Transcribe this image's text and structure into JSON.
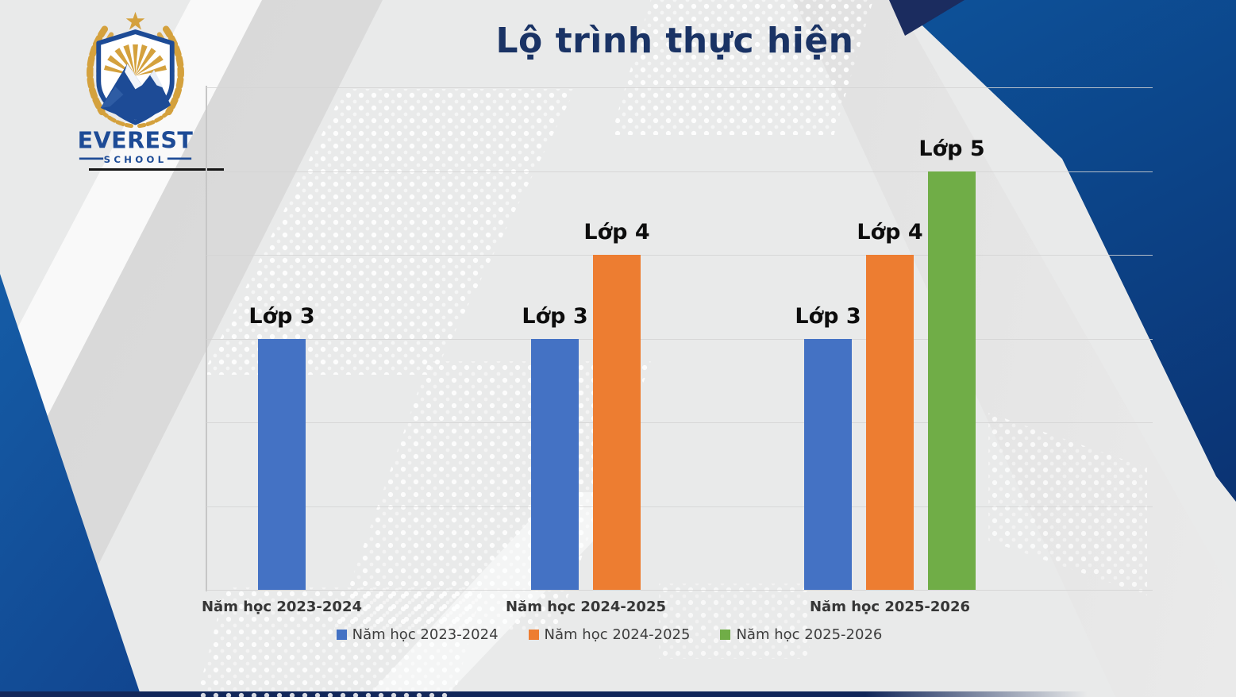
{
  "slide": {
    "title": "Lộ trình thực hiện"
  },
  "logo": {
    "name": "EVEREST",
    "sub": "SCHOOL"
  },
  "colors": {
    "title_navy": "#1a3365",
    "brand_blue": "#1d4b96",
    "brand_gold": "#d4a13d",
    "band_blue": "#1168b1",
    "band_navy": "#0c2a66"
  },
  "chart_data": {
    "type": "bar",
    "title": "Lộ trình thực hiện",
    "categories": [
      "Năm học 2023-2024",
      "Năm học 2024-2025",
      "Năm học 2025-2026"
    ],
    "series": [
      {
        "name": "Năm học 2023-2024",
        "color": "#4472C4",
        "values": [
          3,
          3,
          3
        ]
      },
      {
        "name": "Năm học 2024-2025",
        "color": "#ED7D31",
        "values": [
          null,
          4,
          4
        ]
      },
      {
        "name": "Năm học 2025-2026",
        "color": "#70AD47",
        "values": [
          null,
          null,
          5
        ]
      }
    ],
    "bar_labels": [
      [
        "Lớp 3"
      ],
      [
        "Lớp 3",
        "Lớp 4"
      ],
      [
        "Lớp 3",
        "Lớp 4",
        "Lớp 5"
      ]
    ],
    "xlabel": "",
    "ylabel": "",
    "ylim": [
      0,
      6
    ],
    "grid": true,
    "y_axis_labels_visible": false,
    "legend_position": "bottom"
  }
}
